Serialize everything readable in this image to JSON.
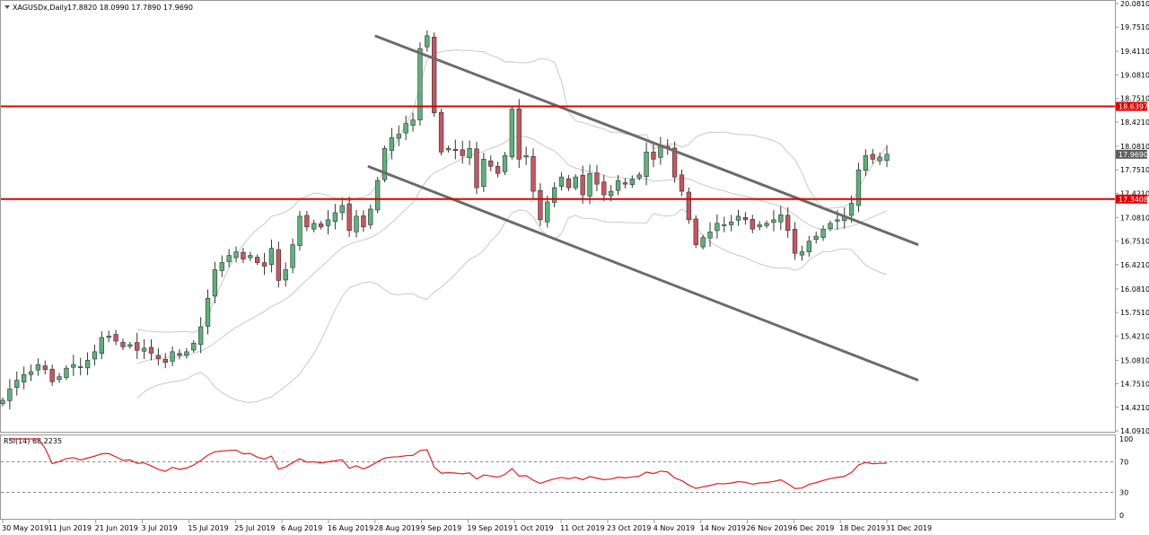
{
  "header": {
    "symbol": "XAGUSDx,Daily",
    "ohlc": "17.8820 18.0990 17.7890 17.9690"
  },
  "rsi_header": {
    "label": "RSI(14) 68.2235"
  },
  "colors": {
    "bull": "#5bb37a",
    "bear": "#c9555f",
    "level": "#e00000",
    "channel": "#6b6b6b",
    "band": "#c8c8c8",
    "rsi": "#e02020",
    "grid": "#999999",
    "current_price_bg": "#606060"
  },
  "price_axis": {
    "ticks": [
      "20.0810",
      "19.7510",
      "19.4110",
      "19.0810",
      "18.7510",
      "18.4210",
      "18.0810",
      "17.7510",
      "17.4210",
      "17.0810",
      "16.7510",
      "16.4210",
      "16.0810",
      "15.7510",
      "15.4210",
      "15.0810",
      "14.7510",
      "14.4210",
      "14.0910"
    ],
    "level_labels": [
      "18.6397",
      "17.3408"
    ],
    "current_label": "17.9690"
  },
  "rsi_axis": {
    "ticks": [
      "100",
      "70",
      "30",
      "0"
    ]
  },
  "date_axis": {
    "labels": [
      "30 May 2019",
      "11 Jun 2019",
      "21 Jun 2019",
      "3 Jul 2019",
      "15 Jul 2019",
      "25 Jul 2019",
      "6 Aug 2019",
      "16 Aug 2019",
      "28 Aug 2019",
      "9 Sep 2019",
      "19 Sep 2019",
      "1 Oct 2019",
      "11 Oct 2019",
      "23 Oct 2019",
      "4 Nov 2019",
      "14 Nov 2019",
      "26 Nov 2019",
      "6 Dec 2019",
      "18 Dec 2019",
      "31 Dec 2019"
    ]
  },
  "chart_data": {
    "type": "candlestick",
    "title": "XAGUSDx,Daily",
    "ylim": [
      14.091,
      20.081
    ],
    "horizontal_levels": [
      18.6397,
      17.3408
    ],
    "channel_lines": [
      {
        "from": [
          "28 Aug 2019",
          19.63
        ],
        "to": [
          "31 Dec 2019",
          16.7
        ]
      },
      {
        "from": [
          "27 Aug 2019",
          17.8
        ],
        "to": [
          "31 Dec 2019",
          14.8
        ]
      }
    ],
    "bollinger_bands": true,
    "rsi": {
      "period": 14,
      "last": 68.2235,
      "levels": [
        70,
        30
      ],
      "ylim": [
        0,
        100
      ]
    },
    "last_candle": {
      "open": 17.882,
      "high": 18.099,
      "low": 17.789,
      "close": 17.969
    },
    "closes": [
      14.52,
      14.68,
      14.8,
      14.88,
      14.92,
      15.02,
      14.95,
      14.78,
      14.85,
      14.97,
      15.02,
      14.98,
      15.08,
      15.2,
      15.4,
      15.42,
      15.35,
      15.27,
      15.3,
      15.22,
      15.25,
      15.18,
      15.1,
      15.05,
      15.2,
      15.15,
      15.2,
      15.32,
      15.55,
      15.95,
      16.35,
      16.45,
      16.55,
      16.6,
      16.5,
      16.55,
      16.45,
      16.4,
      16.65,
      16.2,
      16.35,
      16.7,
      17.1,
      16.95,
      17.0,
      16.95,
      17.05,
      17.15,
      17.25,
      16.9,
      17.1,
      16.95,
      17.2,
      17.6,
      18.05,
      18.2,
      18.25,
      18.4,
      18.45,
      19.45,
      19.63,
      18.55,
      18.0,
      18.05,
      18.02,
      17.95,
      18.05,
      17.5,
      17.9,
      17.8,
      17.7,
      17.95,
      18.6,
      17.9,
      17.95,
      17.45,
      17.05,
      17.3,
      17.5,
      17.65,
      17.5,
      17.65,
      17.4,
      17.7,
      17.55,
      17.4,
      17.45,
      17.6,
      17.55,
      17.62,
      17.68,
      18.0,
      17.9,
      18.1,
      18.05,
      17.65,
      17.45,
      17.05,
      16.7,
      16.8,
      16.88,
      17.0,
      16.98,
      17.02,
      17.1,
      17.05,
      16.92,
      16.98,
      17.0,
      17.05,
      17.12,
      16.9,
      16.58,
      16.6,
      16.75,
      16.82,
      16.92,
      17.0,
      17.05,
      17.1,
      17.28,
      17.75,
      17.95,
      17.9,
      17.93,
      17.97
    ]
  }
}
